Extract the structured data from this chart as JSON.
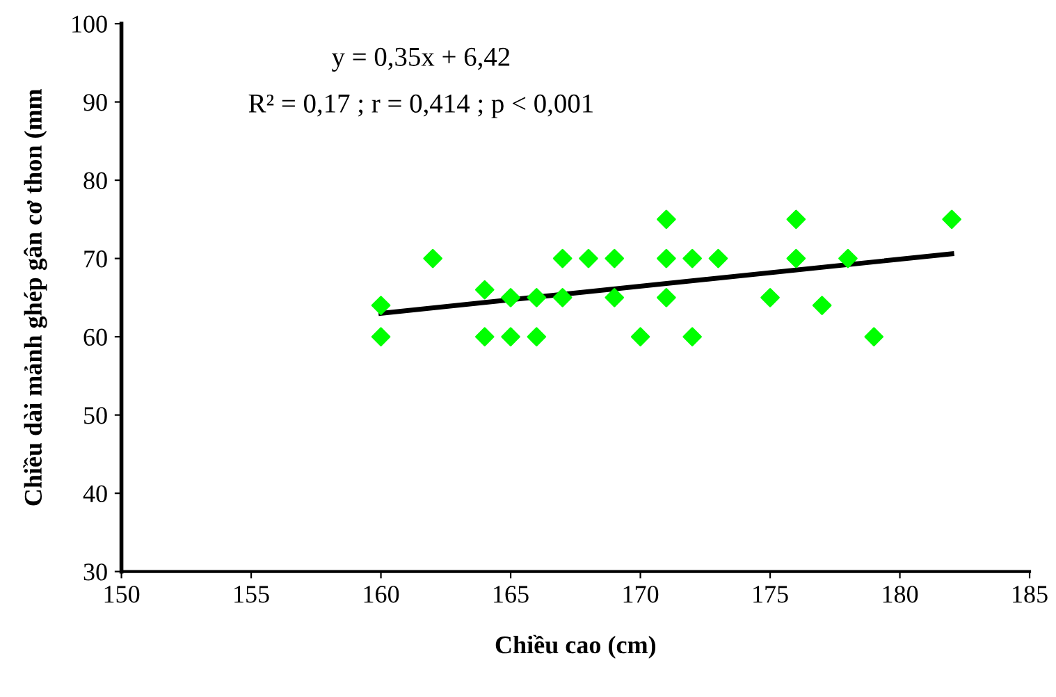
{
  "chart_data": {
    "type": "scatter",
    "xlabel": "Chiều cao (cm)",
    "ylabel": "Chiều dài mảnh ghép gân cơ thon (mm",
    "annotations": [
      "y = 0,35x + 6,42",
      "R² = 0,17 ; r = 0,414 ; p < 0,001"
    ],
    "xlim": [
      150,
      185
    ],
    "xticks": [
      150,
      155,
      160,
      165,
      170,
      175,
      180,
      185
    ],
    "ylim": [
      30,
      100
    ],
    "yticks": [
      30,
      40,
      50,
      60,
      70,
      80,
      90,
      100
    ],
    "grid": false,
    "series": [
      {
        "marker": "diamond",
        "color": "#00ff00",
        "x": [
          160,
          160,
          162,
          164,
          164,
          165,
          165,
          166,
          166,
          167,
          167,
          168,
          169,
          169,
          170,
          171,
          171,
          171,
          172,
          172,
          173,
          175,
          176,
          176,
          177,
          178,
          179,
          182
        ],
        "values": [
          64,
          60,
          70,
          66,
          60,
          65,
          60,
          65,
          60,
          70,
          65,
          70,
          70,
          65,
          60,
          75,
          70,
          65,
          70,
          60,
          70,
          65,
          75,
          70,
          64,
          70,
          60,
          75
        ]
      },
      {
        "type": "line",
        "color": "#000000",
        "x": [
          160,
          182
        ],
        "values": [
          63.0,
          70.6
        ]
      }
    ]
  }
}
